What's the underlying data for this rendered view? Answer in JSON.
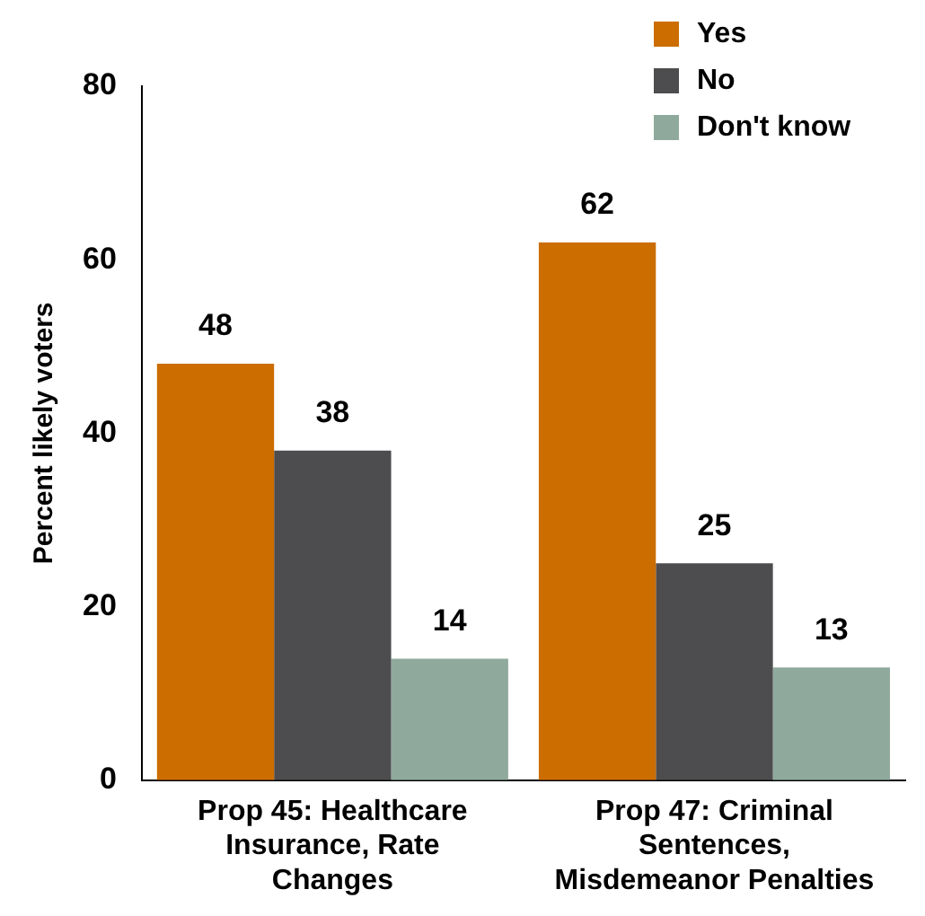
{
  "chart_data": {
    "type": "bar",
    "ylabel": "Percent likely voters",
    "categories": [
      "Prop 45: Healthcare Insurance, Rate Changes",
      "Prop 47: Criminal Sentences, Misdemeanor Penalties"
    ],
    "series": [
      {
        "name": "Yes",
        "color": "#cc6d00",
        "values": [
          48,
          62
        ]
      },
      {
        "name": "No",
        "color": "#4d4d4f",
        "values": [
          38,
          25
        ]
      },
      {
        "name": "Don't know",
        "color": "#8faa9c",
        "values": [
          14,
          13
        ]
      }
    ],
    "ylim": [
      0,
      80
    ],
    "yticks": [
      0,
      20,
      40,
      60,
      80
    ],
    "grid": false,
    "legend": "top right",
    "data_labels": true
  }
}
